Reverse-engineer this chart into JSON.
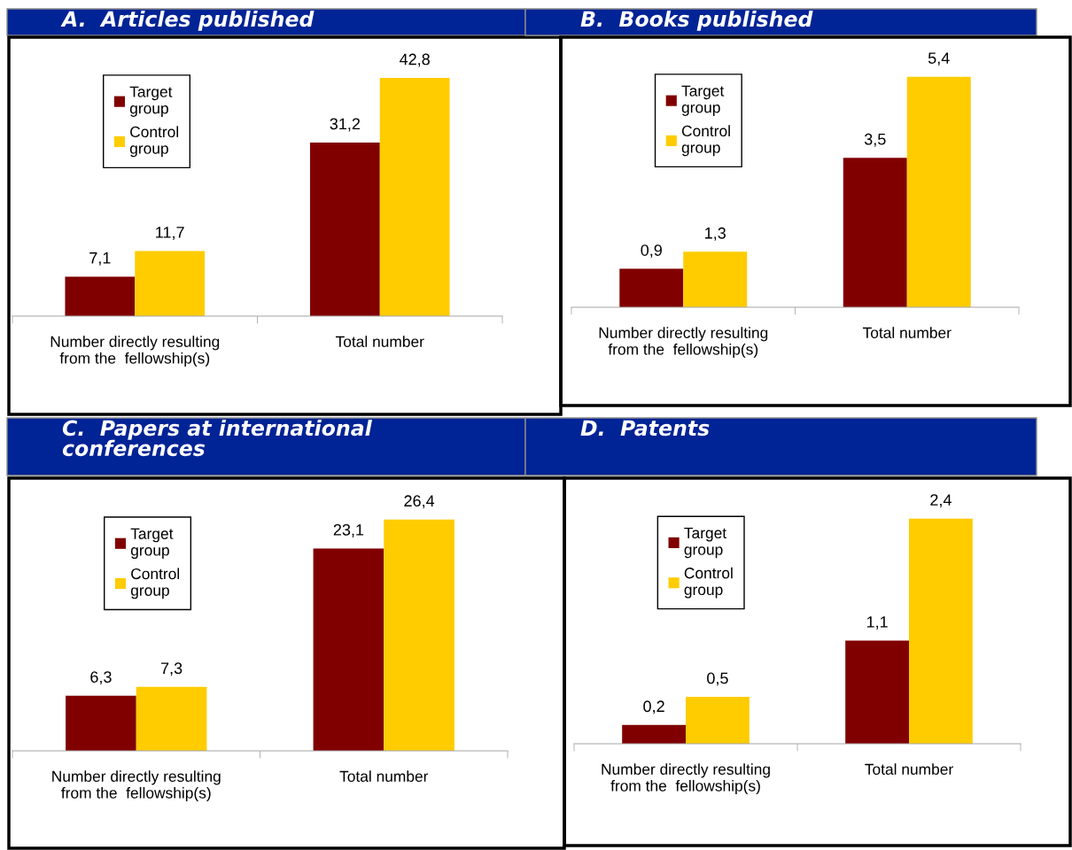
{
  "chart_data": [
    {
      "type": "bar",
      "title": "A.  Articles published",
      "categories": [
        "Number directly resulting from the  fellowship(s)",
        "Total number"
      ],
      "series": [
        {
          "name": "Target group",
          "color": "#800000",
          "values": [
            7.1,
            31.2
          ],
          "value_labels": [
            "7,1",
            "31,2"
          ]
        },
        {
          "name": "Control group",
          "color": "#ffcc00",
          "values": [
            11.7,
            42.8
          ],
          "value_labels": [
            "11,7",
            "42,8"
          ]
        }
      ],
      "legend": "top left",
      "tick_labels": "x"
    },
    {
      "type": "bar",
      "title": "B.  Books published",
      "categories": [
        "Number directly resulting from the  fellowship(s)",
        "Total number"
      ],
      "series": [
        {
          "name": "Target group",
          "color": "#800000",
          "values": [
            0.9,
            3.5
          ],
          "value_labels": [
            "0,9",
            "3,5"
          ]
        },
        {
          "name": "Control group",
          "color": "#ffcc00",
          "values": [
            1.3,
            5.4
          ],
          "value_labels": [
            "1,3",
            "5,4"
          ]
        }
      ],
      "legend": "top left",
      "tick_labels": "x"
    },
    {
      "type": "bar",
      "title": "C.  Papers at international conferences",
      "categories": [
        "Number directly resulting from the  fellowship(s)",
        "Total number"
      ],
      "series": [
        {
          "name": "Target group",
          "color": "#800000",
          "values": [
            6.3,
            23.1
          ],
          "value_labels": [
            "6,3",
            "23,1"
          ]
        },
        {
          "name": "Control group",
          "color": "#ffcc00",
          "values": [
            7.3,
            26.4
          ],
          "value_labels": [
            "7,3",
            "26,4"
          ]
        }
      ],
      "legend": "top left",
      "tick_labels": "x"
    },
    {
      "type": "bar",
      "title": "D.  Patents",
      "categories": [
        "Number directly resulting from the  fellowship(s)",
        "Total number"
      ],
      "series": [
        {
          "name": "Target group",
          "color": "#800000",
          "values": [
            0.2,
            1.1
          ],
          "value_labels": [
            "0,2",
            "1,1"
          ]
        },
        {
          "name": "Control group",
          "color": "#ffcc00",
          "values": [
            0.5,
            2.4
          ],
          "value_labels": [
            "0,5",
            "2,4"
          ]
        }
      ],
      "legend": "top left",
      "tick_labels": "x"
    }
  ]
}
